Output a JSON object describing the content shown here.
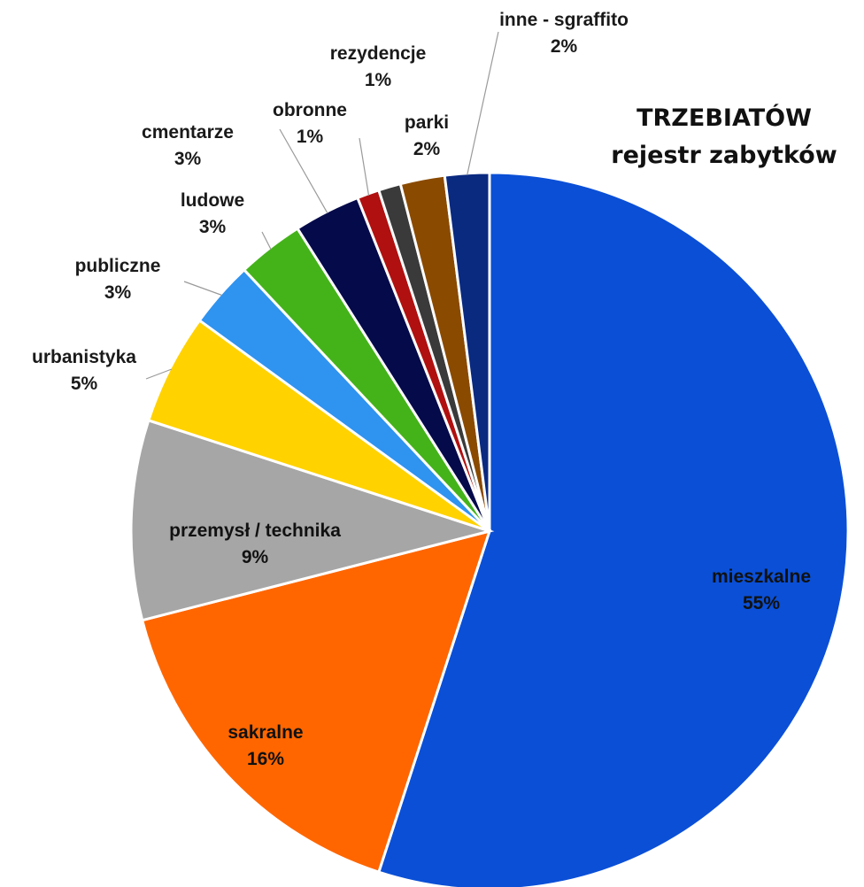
{
  "chart_data": {
    "type": "pie",
    "title": "TRZEBIATÓW",
    "subtitle": "rejestr zabytków",
    "slices": [
      {
        "name": "mieszkalne",
        "value": 55,
        "label": "55%",
        "color": "#0a4fd6"
      },
      {
        "name": "sakralne",
        "value": 16,
        "label": "16%",
        "color": "#ff6600"
      },
      {
        "name": "przemysł / technika",
        "value": 9,
        "label": "9%",
        "color": "#a6a6a6"
      },
      {
        "name": "urbanistyka",
        "value": 5,
        "label": "5%",
        "color": "#ffd200"
      },
      {
        "name": "publiczne",
        "value": 3,
        "label": "3%",
        "color": "#2f93f0"
      },
      {
        "name": "ludowe",
        "value": 3,
        "label": "3%",
        "color": "#44b31a"
      },
      {
        "name": "cmentarze",
        "value": 3,
        "label": "3%",
        "color": "#050a4a"
      },
      {
        "name": "obronne",
        "value": 1,
        "label": "1%",
        "color": "#b01010"
      },
      {
        "name": "rezydencje",
        "value": 1,
        "label": "1%",
        "color": "#3a3a3a"
      },
      {
        "name": "parki",
        "value": 2,
        "label": "2%",
        "color": "#8a4a00"
      },
      {
        "name": "inne - sgraffito",
        "value": 2,
        "label": "2%",
        "color": "#0a2a80"
      }
    ]
  }
}
